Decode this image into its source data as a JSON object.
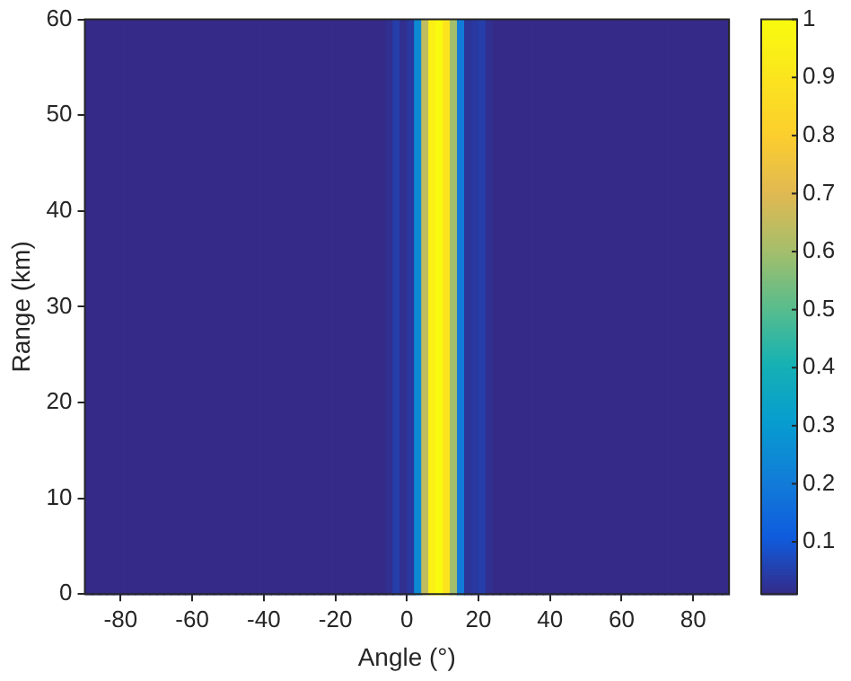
{
  "chart_data": {
    "type": "heatmap",
    "xlabel": "Angle (°)",
    "ylabel": "Range (km)",
    "x": [
      -89,
      -87,
      -85,
      -83,
      -81,
      -79,
      -77,
      -75,
      -73,
      -71,
      -69,
      -67,
      -65,
      -63,
      -61,
      -59,
      -57,
      -55,
      -53,
      -51,
      -49,
      -47,
      -45,
      -43,
      -41,
      -39,
      -37,
      -35,
      -33,
      -31,
      -29,
      -27,
      -25,
      -23,
      -21,
      -19,
      -17,
      -15,
      -13,
      -11,
      -9,
      -7,
      -5,
      -3,
      -1,
      1,
      3,
      5,
      7,
      9,
      11,
      13,
      15,
      17,
      19,
      21,
      23,
      25,
      27,
      29,
      31,
      33,
      35,
      37,
      39,
      41,
      43,
      45,
      47,
      49,
      51,
      53,
      55,
      57,
      59,
      61,
      63,
      65,
      67,
      69,
      71,
      73,
      75,
      77,
      79,
      81,
      83,
      85,
      87,
      89
    ],
    "cells": [
      [
        0.01,
        0.01,
        0.01,
        0.01,
        0.01,
        0.01,
        0.01,
        0.01,
        0.01,
        0.01,
        0.01,
        0.01,
        0.01,
        0.01,
        0.01,
        0.01,
        0.01,
        0.01,
        0.01,
        0.01,
        0.01,
        0.01,
        0.01,
        0.01,
        0.01,
        0.01,
        0.01,
        0.01,
        0.01,
        0.01,
        0.01,
        0.01,
        0.01,
        0.01,
        0.01,
        0.01,
        0.01,
        0.01,
        0.01,
        0.01,
        0.01,
        0.01,
        0.02,
        0.05,
        0.02,
        0.04,
        0.25,
        0.65,
        0.95,
        1,
        0.9,
        0.6,
        0.2,
        0.03,
        0.04,
        0.05,
        0.02,
        0.01,
        0.01,
        0.01,
        0.01,
        0.01,
        0.01,
        0.01,
        0.01,
        0.01,
        0.01,
        0.01,
        0.01,
        0.01,
        0.01,
        0.01,
        0.01,
        0.01,
        0.01,
        0.01,
        0.01,
        0.01,
        0.01,
        0.01,
        0.01,
        0.01,
        0.01,
        0.01,
        0.01,
        0.01,
        0.01,
        0.01,
        0.01,
        0.01
      ]
    ],
    "xlim": [
      -90,
      90
    ],
    "xticks": [
      -80,
      -60,
      -40,
      -20,
      0,
      20,
      40,
      60,
      80
    ],
    "ylim": [
      0,
      60
    ],
    "yticks": [
      0,
      10,
      20,
      30,
      40,
      50,
      60
    ],
    "clim": [
      0.01,
      1
    ],
    "cticks": [
      0.1,
      0.2,
      0.3,
      0.4,
      0.5,
      0.6,
      0.7,
      0.8,
      0.9,
      1
    ]
  }
}
